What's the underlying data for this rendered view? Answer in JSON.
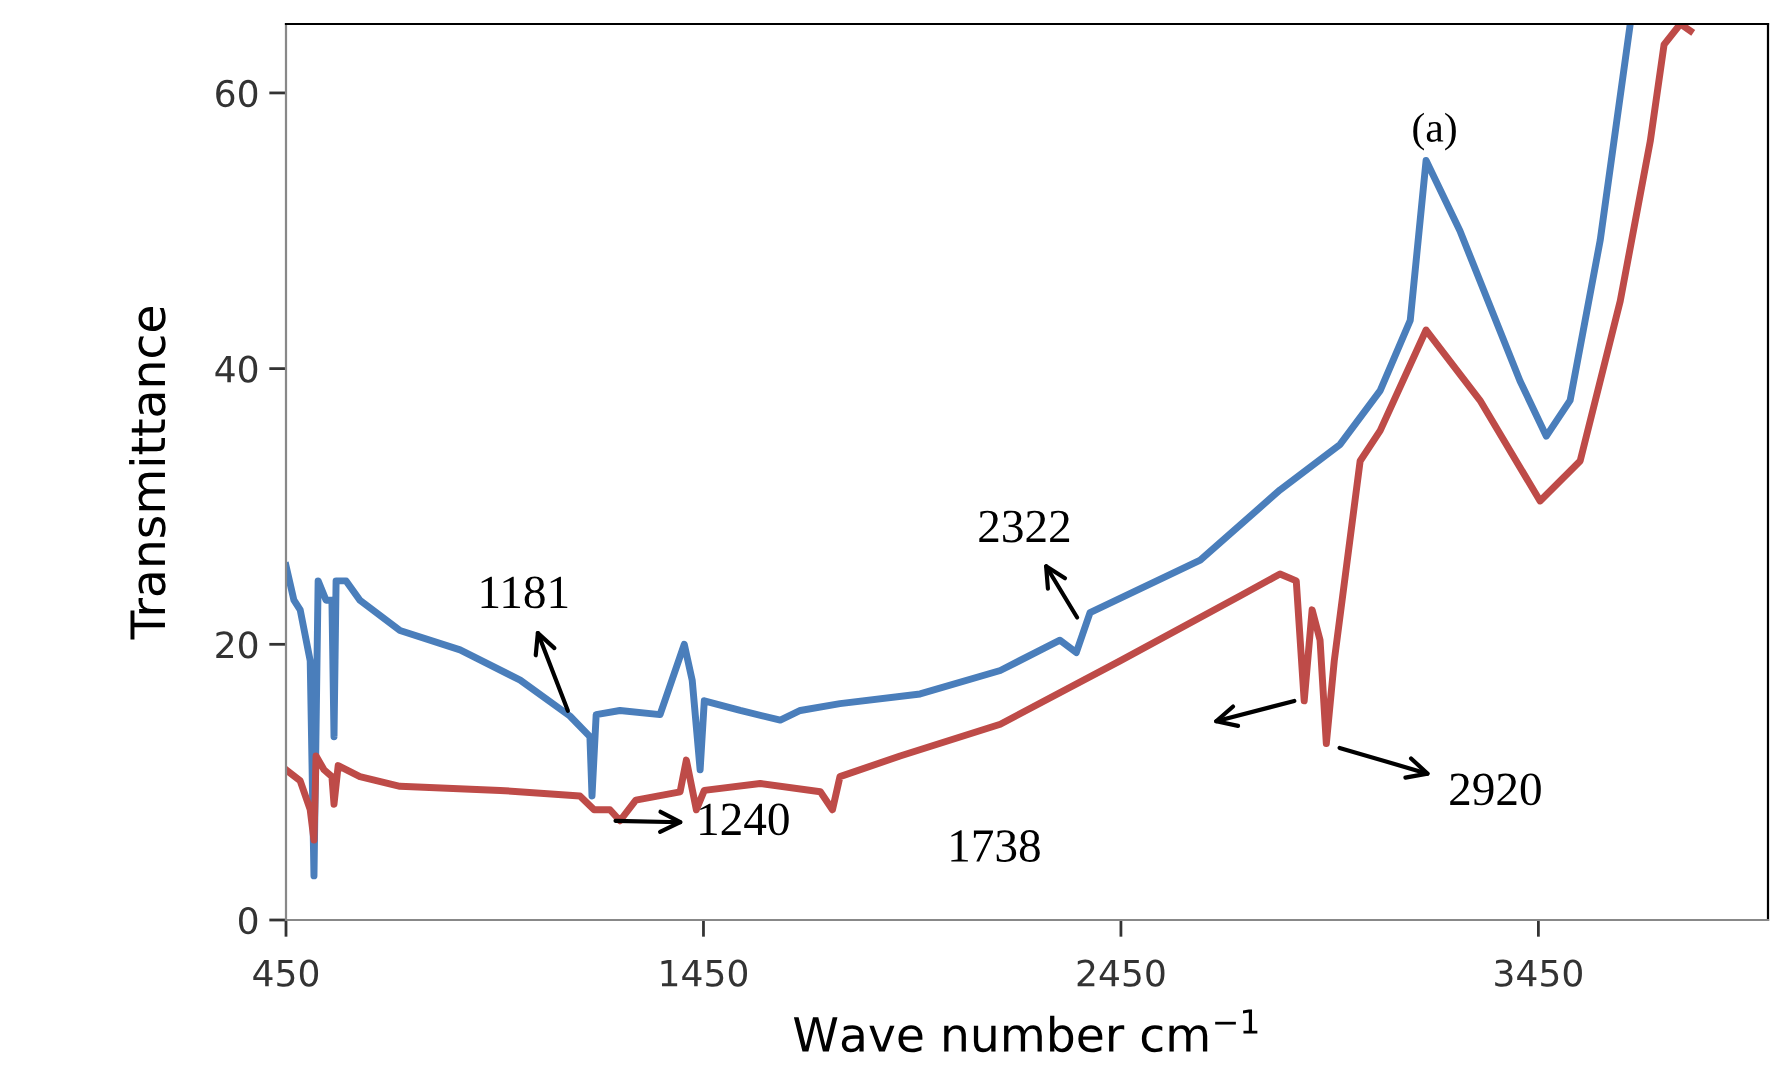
{
  "chart_data": {
    "type": "line",
    "xlabel": "Wave number cm$^{−1}$",
    "ylabel": "Transmittance",
    "xlim": [
      450,
      4000
    ],
    "ylim": [
      0,
      65
    ],
    "xticks": [
      450,
      1450,
      2450,
      3450
    ],
    "yticks": [
      0,
      20,
      40,
      60
    ],
    "grid": false,
    "legend": false,
    "marker": "none",
    "line_style": "solid",
    "series": [
      {
        "color": "#4a7ebb",
        "x": [
          450,
          469,
          484,
          508,
          517,
          527,
          546,
          560,
          565,
          570,
          594,
          627,
          723,
          867,
          1011,
          1130,
          1178,
          1183,
          1193,
          1250,
          1346,
          1404,
          1423,
          1442,
          1452,
          1538,
          1634,
          1682,
          1777,
          1969,
          2161,
          2304,
          2343,
          2376,
          2640,
          2831,
          2975,
          3071,
          3143,
          3181,
          3262,
          3406,
          3469,
          3526,
          3598,
          3670
        ],
        "values": [
          25.7,
          23.2,
          22.5,
          18.8,
          3.2,
          24.6,
          23.2,
          23.2,
          13.3,
          24.6,
          24.6,
          23.2,
          21.0,
          19.6,
          17.4,
          14.8,
          13.3,
          9.0,
          14.9,
          15.2,
          14.9,
          20.0,
          17.4,
          10.9,
          15.9,
          15.2,
          14.5,
          15.2,
          15.7,
          16.4,
          18.1,
          20.3,
          19.4,
          22.3,
          26.1,
          31.2,
          34.5,
          38.4,
          43.5,
          55.1,
          50.0,
          39.1,
          35.1,
          37.7,
          49.3,
          65
        ]
      },
      {
        "color": "#be4b48",
        "x": [
          450,
          484,
          508,
          517,
          522,
          541,
          560,
          565,
          575,
          627,
          723,
          963,
          1154,
          1188,
          1226,
          1250,
          1288,
          1394,
          1409,
          1433,
          1452,
          1586,
          1730,
          1759,
          1777,
          1921,
          2161,
          2448,
          2735,
          2831,
          2870,
          2889,
          2908,
          2927,
          2942,
          2961,
          3023,
          3071,
          3181,
          3310,
          3454,
          3550,
          3646,
          3718,
          3751,
          3790,
          3814
        ],
        "values": [
          10.9,
          10.1,
          8.0,
          5.8,
          11.9,
          10.9,
          10.4,
          8.4,
          11.2,
          10.4,
          9.7,
          9.4,
          9.0,
          8.0,
          8.0,
          7.2,
          8.7,
          9.3,
          11.6,
          8.0,
          9.4,
          9.9,
          9.3,
          8.0,
          10.4,
          11.9,
          14.2,
          18.8,
          23.5,
          25.1,
          24.6,
          15.9,
          22.5,
          20.3,
          12.8,
          18.8,
          33.3,
          35.5,
          42.8,
          37.7,
          30.4,
          33.3,
          44.9,
          56.5,
          63.5,
          65,
          64.5
        ]
      }
    ],
    "annotations": [
      {
        "text": "1181",
        "x": 1130,
        "y": 14.8
      },
      {
        "text": "1240",
        "x": 1226,
        "y": 7.2
      },
      {
        "text": "2322",
        "x": 2352,
        "y": 21.6
      },
      "1738",
      {
        "text": "2920",
        "x": 2961,
        "y": 12.6
      },
      "(a)"
    ]
  }
}
